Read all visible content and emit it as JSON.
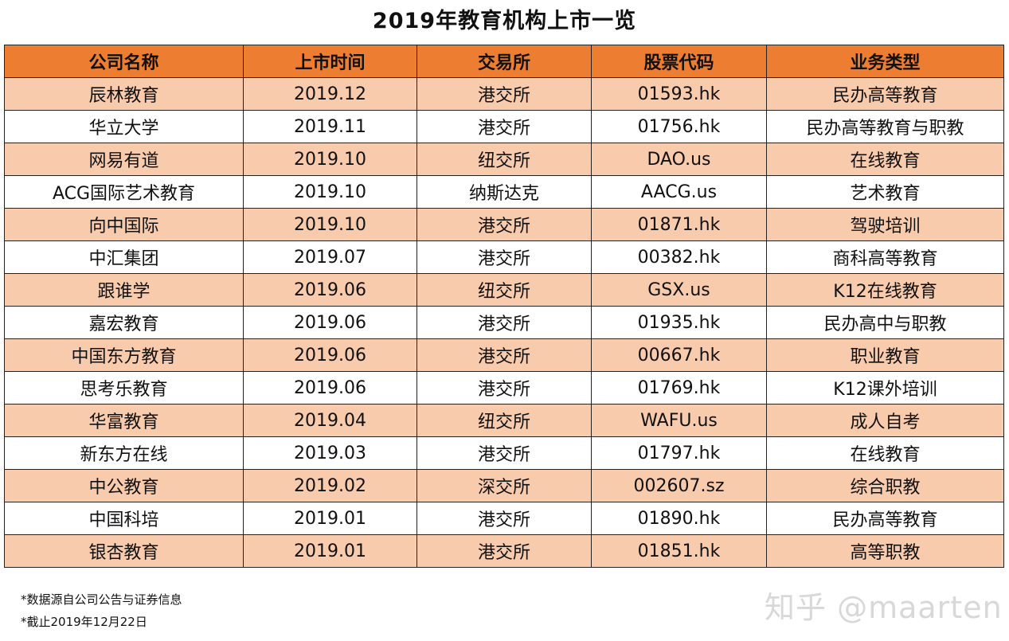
{
  "title": "2019年教育机构上市一览",
  "colors": {
    "header": "#ED7D31",
    "row_alt": "#F8CBAD",
    "row": "#FFFFFF"
  },
  "columns": [
    "公司名称",
    "上市时间",
    "交易所",
    "股票代码",
    "业务类型"
  ],
  "rows": [
    [
      "辰林教育",
      "2019.12",
      "港交所",
      "01593.hk",
      "民办高等教育"
    ],
    [
      "华立大学",
      "2019.11",
      "港交所",
      "01756.hk",
      "民办高等教育与职教"
    ],
    [
      "网易有道",
      "2019.10",
      "纽交所",
      "DAO.us",
      "在线教育"
    ],
    [
      "ACG国际艺术教育",
      "2019.10",
      "纳斯达克",
      "AACG.us",
      "艺术教育"
    ],
    [
      "向中国际",
      "2019.10",
      "港交所",
      "01871.hk",
      "驾驶培训"
    ],
    [
      "中汇集团",
      "2019.07",
      "港交所",
      "00382.hk",
      "商科高等教育"
    ],
    [
      "跟谁学",
      "2019.06",
      "纽交所",
      "GSX.us",
      "K12在线教育"
    ],
    [
      "嘉宏教育",
      "2019.06",
      "港交所",
      "01935.hk",
      "民办高中与职教"
    ],
    [
      "中国东方教育",
      "2019.06",
      "港交所",
      "00667.hk",
      "职业教育"
    ],
    [
      "思考乐教育",
      "2019.06",
      "港交所",
      "01769.hk",
      "K12课外培训"
    ],
    [
      "华富教育",
      "2019.04",
      "纽交所",
      "WAFU.us",
      "成人自考"
    ],
    [
      "新东方在线",
      "2019.03",
      "港交所",
      "01797.hk",
      "在线教育"
    ],
    [
      "中公教育",
      "2019.02",
      "深交所",
      "002607.sz",
      "综合职教"
    ],
    [
      "中国科培",
      "2019.01",
      "港交所",
      "01890.hk",
      "民办高等教育"
    ],
    [
      "银杏教育",
      "2019.01",
      "港交所",
      "01851.hk",
      "高等职教"
    ]
  ],
  "notes": [
    "*数据源自公司公告与证券信息",
    "*截止2019年12月22日"
  ],
  "watermark": "知乎 @maarten"
}
